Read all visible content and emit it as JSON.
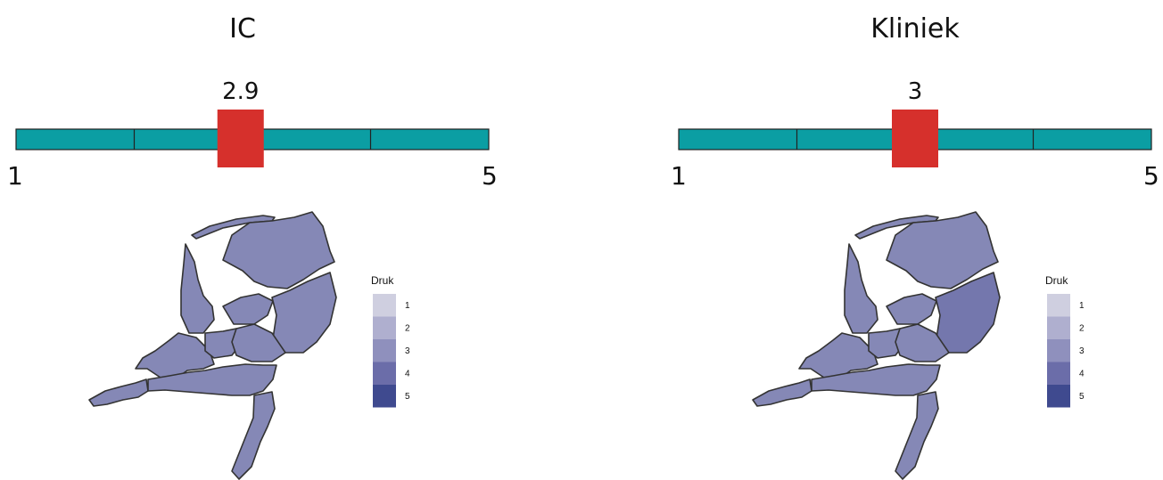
{
  "chart_data": [
    {
      "type": "gauge-with-choropleth",
      "title": "IC",
      "value": 2.9,
      "value_label": "2.9",
      "scale_min": 1,
      "scale_max": 5,
      "min_label": "1",
      "max_label": "5",
      "legend": {
        "title": "Druk",
        "levels": [
          "1",
          "2",
          "3",
          "4",
          "5"
        ],
        "placement": "right"
      },
      "region_level": {
        "default": 3,
        "east": 3
      }
    },
    {
      "type": "gauge-with-choropleth",
      "title": "Kliniek",
      "value": 3,
      "value_label": "3",
      "scale_min": 1,
      "scale_max": 5,
      "min_label": "1",
      "max_label": "5",
      "legend": {
        "title": "Druk",
        "levels": [
          "1",
          "2",
          "3",
          "4",
          "5"
        ],
        "placement": "right"
      },
      "region_level": {
        "default": 3,
        "east": 4
      }
    }
  ],
  "colors": {
    "gauge_bar": "#0b9ea3",
    "gauge_marker": "#d6302c",
    "legend_scale": [
      "#cfcfe0",
      "#afafcf",
      "#8f90bd",
      "#6b6da9",
      "#3f4a8f"
    ],
    "map_fill_level3": "#8588b6",
    "map_fill_level4": "#7477ad"
  }
}
